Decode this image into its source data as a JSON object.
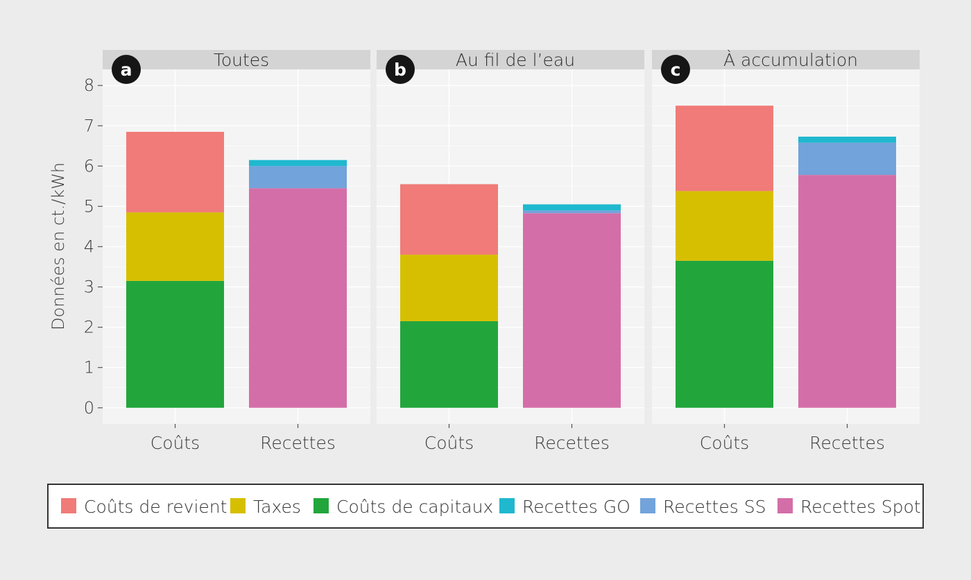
{
  "chart_data": {
    "type": "bar",
    "stacked": true,
    "ylabel": "Données en ct./kWh",
    "ylim": [
      -0.4,
      8.4
    ],
    "yticks": [
      0,
      1,
      2,
      3,
      4,
      5,
      6,
      7,
      8
    ],
    "grid": true,
    "legend_position": "bottom",
    "categories": [
      "Coûts",
      "Recettes"
    ],
    "series_colors": {
      "Coûts de revient": "#f07b78",
      "Taxes": "#d6bf00",
      "Coûts de capitaux": "#22a63c",
      "Recettes GO": "#1fb8cf",
      "Recettes SS": "#72a3da",
      "Recettes Spot": "#d46ea8"
    },
    "legend": [
      {
        "name": "Coûts de revient",
        "color": "#f07b78"
      },
      {
        "name": "Taxes",
        "color": "#d6bf00"
      },
      {
        "name": "Coûts de capitaux",
        "color": "#22a63c"
      },
      {
        "name": "Recettes GO",
        "color": "#1fb8cf"
      },
      {
        "name": "Recettes SS",
        "color": "#72a3da"
      },
      {
        "name": "Recettes Spot",
        "color": "#d46ea8"
      }
    ],
    "panels": [
      {
        "badge": "a",
        "title": "Toutes",
        "bars": [
          {
            "category": "Coûts",
            "segments": [
              {
                "series": "Coûts de capitaux",
                "value": 3.15
              },
              {
                "series": "Taxes",
                "value": 1.7
              },
              {
                "series": "Coûts de revient",
                "value": 2.0
              }
            ]
          },
          {
            "category": "Recettes",
            "segments": [
              {
                "series": "Recettes Spot",
                "value": 5.45
              },
              {
                "series": "Recettes SS",
                "value": 0.55
              },
              {
                "series": "Recettes GO",
                "value": 0.15
              }
            ]
          }
        ]
      },
      {
        "badge": "b",
        "title": "Au fil de l’eau",
        "bars": [
          {
            "category": "Coûts",
            "segments": [
              {
                "series": "Coûts de capitaux",
                "value": 2.15
              },
              {
                "series": "Taxes",
                "value": 1.65
              },
              {
                "series": "Coûts de revient",
                "value": 1.75
              }
            ]
          },
          {
            "category": "Recettes",
            "segments": [
              {
                "series": "Recettes Spot",
                "value": 4.83
              },
              {
                "series": "Recettes SS",
                "value": 0.07
              },
              {
                "series": "Recettes GO",
                "value": 0.15
              }
            ]
          }
        ]
      },
      {
        "badge": "c",
        "title": "À accumulation",
        "bars": [
          {
            "category": "Coûts",
            "segments": [
              {
                "series": "Coûts de capitaux",
                "value": 3.65
              },
              {
                "series": "Taxes",
                "value": 1.73
              },
              {
                "series": "Coûts de revient",
                "value": 2.12
              }
            ]
          },
          {
            "category": "Recettes",
            "segments": [
              {
                "series": "Recettes Spot",
                "value": 5.78
              },
              {
                "series": "Recettes SS",
                "value": 0.8
              },
              {
                "series": "Recettes GO",
                "value": 0.15
              }
            ]
          }
        ]
      }
    ]
  }
}
